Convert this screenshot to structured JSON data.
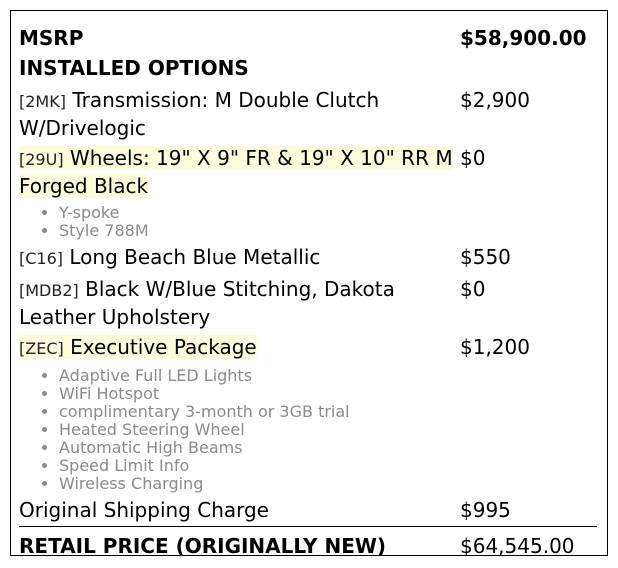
{
  "msrp": {
    "label": "MSRP",
    "price": "$58,900.00"
  },
  "installed_options_heading": "INSTALLED OPTIONS",
  "options": [
    {
      "code": "[2MK]",
      "name": "Transmission: M Double Clutch W/Drivelogic",
      "price": "$2,900",
      "highlighted": false,
      "features": []
    },
    {
      "code": "[29U]",
      "name": "Wheels: 19\" X 9\" FR & 19\" X 10\" RR M Forged Black",
      "price": "$0",
      "highlighted": true,
      "features": [
        "Y-spoke",
        "Style 788M"
      ]
    },
    {
      "code": "[C16]",
      "name": "Long Beach Blue Metallic",
      "price": "$550",
      "highlighted": false,
      "features": []
    },
    {
      "code": "[MDB2]",
      "name": "Black W/Blue Stitching, Dakota Leather Upholstery",
      "price": "$0",
      "highlighted": false,
      "features": []
    },
    {
      "code": "[ZEC]",
      "name": "Executive Package",
      "price": "$1,200",
      "highlighted": true,
      "features": [
        "Adaptive Full LED Lights",
        "WiFi Hotspot",
        "complimentary 3-month or 3GB trial",
        "Heated Steering Wheel",
        "Automatic High Beams",
        "Speed Limit Info",
        "Wireless Charging"
      ]
    }
  ],
  "shipping": {
    "label": "Original Shipping Charge",
    "price": "$995"
  },
  "total": {
    "label": "RETAIL PRICE (ORIGINALLY NEW)",
    "price": "$64,545.00"
  },
  "colors": {
    "highlight": "#fcfcdc",
    "feature_text": "#8a8a8a"
  }
}
